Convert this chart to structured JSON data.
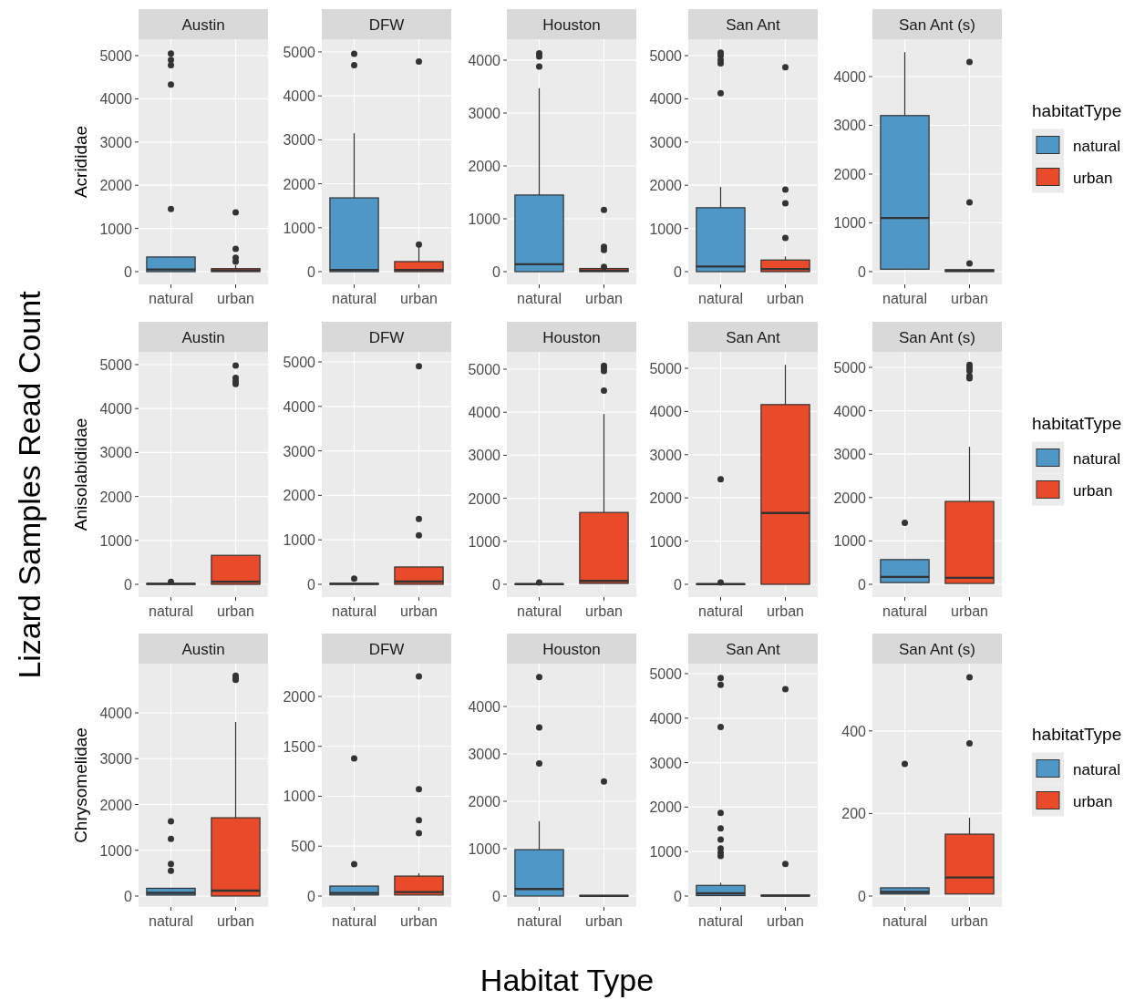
{
  "chart_data": [
    {
      "type": "box",
      "title": "Austin",
      "ylabel": "Acrididae",
      "categories": [
        "natural",
        "urban"
      ],
      "colors": [
        "#4f97c6",
        "#e84a2a"
      ],
      "ylim": [
        -295,
        5380
      ],
      "yticks": [
        0,
        1000,
        2000,
        3000,
        4000,
        5000
      ],
      "grid": true,
      "boxes": [
        {
          "q1": 0,
          "median": 50,
          "q3": 340,
          "high": 340,
          "outliers": [
            5050,
            4900,
            4780,
            4330,
            1450
          ]
        },
        {
          "q1": 0,
          "median": 30,
          "q3": 70,
          "high": 150,
          "outliers": [
            1370,
            530,
            320,
            230
          ]
        }
      ]
    },
    {
      "type": "box",
      "title": "DFW",
      "categories": [
        "natural",
        "urban"
      ],
      "colors": [
        "#4f97c6",
        "#e84a2a"
      ],
      "ylim": [
        -290,
        5290
      ],
      "yticks": [
        0,
        1000,
        2000,
        3000,
        4000,
        5000
      ],
      "grid": true,
      "boxes": [
        {
          "q1": 0,
          "median": 40,
          "q3": 1680,
          "high": 3150,
          "outliers": [
            4960,
            4700
          ]
        },
        {
          "q1": 0,
          "median": 40,
          "q3": 230,
          "high": 570,
          "outliers": [
            620,
            4780
          ]
        }
      ]
    },
    {
      "type": "box",
      "title": "Houston",
      "categories": [
        "natural",
        "urban"
      ],
      "colors": [
        "#4f97c6",
        "#e84a2a"
      ],
      "ylim": [
        -241,
        4397
      ],
      "yticks": [
        0,
        1000,
        2000,
        3000,
        4000
      ],
      "grid": true,
      "boxes": [
        {
          "q1": 0,
          "median": 140,
          "q3": 1450,
          "high": 3470,
          "outliers": [
            4130,
            4070,
            3880
          ]
        },
        {
          "q1": 0,
          "median": 20,
          "q3": 60,
          "high": 60,
          "outliers": [
            1170,
            470,
            410,
            90
          ]
        }
      ]
    },
    {
      "type": "box",
      "title": "San Ant",
      "categories": [
        "natural",
        "urban"
      ],
      "colors": [
        "#4f97c6",
        "#e84a2a"
      ],
      "ylim": [
        -295,
        5380
      ],
      "yticks": [
        0,
        1000,
        2000,
        3000,
        4000,
        5000
      ],
      "grid": true,
      "boxes": [
        {
          "q1": 0,
          "median": 120,
          "q3": 1480,
          "high": 1960,
          "outliers": [
            5070,
            5000,
            4900,
            4820,
            4130
          ]
        },
        {
          "q1": 0,
          "median": 60,
          "q3": 270,
          "high": 350,
          "outliers": [
            4730,
            1900,
            1580,
            780
          ]
        }
      ]
    },
    {
      "type": "box",
      "title": "San Ant (s)",
      "categories": [
        "natural",
        "urban"
      ],
      "ylim": [
        -262,
        4766
      ],
      "yticks": [
        0,
        1000,
        2000,
        3000,
        4000
      ],
      "grid": true,
      "legend": "right",
      "legend_title": "habitatType",
      "series": [
        {
          "name": "natural",
          "color": "#4f97c6",
          "boxes": [
            {
              "q1": 50,
              "median": 1100,
              "q3": 3200,
              "high": 4500
            },
            null
          ]
        },
        {
          "name": "urban",
          "color": "#e84a2a",
          "boxes": [
            null,
            {
              "q1": 0,
              "median": 20,
              "q3": 40,
              "high": 60,
              "outliers": [
                4300,
                1420,
                170
              ]
            }
          ]
        }
      ]
    },
    {
      "type": "box",
      "title": "Austin",
      "ylabel": "Anisolabididae",
      "categories": [
        "natural",
        "urban"
      ],
      "colors": [
        "#4f97c6",
        "#e84a2a"
      ],
      "ylim": [
        -290,
        5290
      ],
      "yticks": [
        0,
        1000,
        2000,
        3000,
        4000,
        5000
      ],
      "grid": true,
      "boxes": [
        {
          "q1": 0,
          "median": 10,
          "q3": 20,
          "high": 40,
          "outliers": [
            60
          ]
        },
        {
          "q1": 0,
          "median": 60,
          "q3": 660,
          "high": 660,
          "outliers": [
            4980,
            4700,
            4620,
            4560
          ]
        }
      ]
    },
    {
      "type": "box",
      "title": "DFW",
      "categories": [
        "natural",
        "urban"
      ],
      "colors": [
        "#4f97c6",
        "#e84a2a"
      ],
      "ylim": [
        -287,
        5225
      ],
      "yticks": [
        0,
        1000,
        2000,
        3000,
        4000,
        5000
      ],
      "grid": true,
      "boxes": [
        {
          "q1": 0,
          "median": 10,
          "q3": 20,
          "high": 30,
          "outliers": [
            130
          ]
        },
        {
          "q1": 0,
          "median": 60,
          "q3": 390,
          "high": 390,
          "outliers": [
            4900,
            1470,
            1100
          ]
        }
      ]
    },
    {
      "type": "box",
      "title": "Houston",
      "categories": [
        "natural",
        "urban"
      ],
      "colors": [
        "#4f97c6",
        "#e84a2a"
      ],
      "ylim": [
        -297,
        5403
      ],
      "yticks": [
        0,
        1000,
        2000,
        3000,
        4000,
        5000
      ],
      "grid": true,
      "boxes": [
        {
          "q1": 0,
          "median": 5,
          "q3": 10,
          "high": 20,
          "outliers": [
            40
          ]
        },
        {
          "q1": 20,
          "median": 80,
          "q3": 1670,
          "high": 3960,
          "outliers": [
            5080,
            5020,
            4960,
            4500
          ]
        }
      ]
    },
    {
      "type": "box",
      "title": "San Ant",
      "categories": [
        "natural",
        "urban"
      ],
      "colors": [
        "#4f97c6",
        "#e84a2a"
      ],
      "ylim": [
        -295,
        5380
      ],
      "yticks": [
        0,
        1000,
        2000,
        3000,
        4000,
        5000
      ],
      "grid": true,
      "boxes": [
        {
          "q1": 0,
          "median": 5,
          "q3": 10,
          "high": 20,
          "outliers": [
            40,
            2430
          ]
        },
        {
          "q1": 0,
          "median": 1650,
          "q3": 4160,
          "high": 5080
        }
      ]
    },
    {
      "type": "box",
      "title": "San Ant (s)",
      "categories": [
        "natural",
        "urban"
      ],
      "ylim": [
        -294,
        5357
      ],
      "yticks": [
        0,
        1000,
        2000,
        3000,
        4000,
        5000
      ],
      "grid": true,
      "legend": "right",
      "legend_title": "habitatType",
      "series": [
        {
          "name": "natural",
          "color": "#4f97c6",
          "boxes": [
            {
              "q1": 40,
              "median": 170,
              "q3": 570,
              "high": 570,
              "outliers": [
                1420
              ]
            },
            null
          ]
        },
        {
          "name": "urban",
          "color": "#e84a2a",
          "boxes": [
            null,
            {
              "q1": 20,
              "median": 150,
              "q3": 1910,
              "high": 3170,
              "outliers": [
                5060,
                4990,
                4920,
                4800,
                4750
              ]
            }
          ]
        }
      ]
    },
    {
      "type": "box",
      "title": "Austin",
      "ylabel": "Chrysomelidae",
      "categories": [
        "natural",
        "urban"
      ],
      "colors": [
        "#4f97c6",
        "#e84a2a"
      ],
      "ylim": [
        -239,
        5075
      ],
      "yticks": [
        0,
        1000,
        2000,
        3000,
        4000
      ],
      "grid": true,
      "boxes": [
        {
          "q1": 20,
          "median": 70,
          "q3": 170,
          "high": 170,
          "outliers": [
            1630,
            1250,
            700,
            550
          ]
        },
        {
          "q1": 0,
          "median": 120,
          "q3": 1710,
          "high": 3800,
          "outliers": [
            4810,
            4750,
            4720
          ]
        }
      ]
    },
    {
      "type": "box",
      "title": "DFW",
      "categories": [
        "natural",
        "urban"
      ],
      "colors": [
        "#4f97c6",
        "#e84a2a"
      ],
      "ylim": [
        -110,
        2329
      ],
      "yticks": [
        0,
        500,
        1000,
        1500,
        2000
      ],
      "grid": true,
      "boxes": [
        {
          "q1": 10,
          "median": 30,
          "q3": 100,
          "high": 100,
          "outliers": [
            1380,
            320
          ]
        },
        {
          "q1": 10,
          "median": 40,
          "q3": 200,
          "high": 230,
          "outliers": [
            2200,
            1070,
            760,
            630
          ]
        }
      ]
    },
    {
      "type": "box",
      "title": "Houston",
      "categories": [
        "natural",
        "urban"
      ],
      "colors": [
        "#4f97c6",
        "#e84a2a"
      ],
      "ylim": [
        -231,
        4904
      ],
      "yticks": [
        0,
        1000,
        2000,
        3000,
        4000
      ],
      "grid": true,
      "boxes": [
        {
          "q1": 0,
          "median": 150,
          "q3": 980,
          "high": 1580,
          "outliers": [
            4620,
            3560,
            2800
          ]
        },
        {
          "q1": 0,
          "median": 5,
          "q3": 10,
          "high": 20,
          "outliers": [
            2420
          ]
        }
      ]
    },
    {
      "type": "box",
      "title": "San Ant",
      "categories": [
        "natural",
        "urban"
      ],
      "colors": [
        "#4f97c6",
        "#e84a2a"
      ],
      "ylim": [
        -246,
        5225
      ],
      "yticks": [
        0,
        1000,
        2000,
        3000,
        4000,
        5000
      ],
      "grid": true,
      "boxes": [
        {
          "q1": 10,
          "median": 60,
          "q3": 240,
          "high": 300,
          "outliers": [
            4900,
            4750,
            3800,
            1870,
            1520,
            1270,
            1070,
            980,
            900
          ]
        },
        {
          "q1": 0,
          "median": 10,
          "q3": 20,
          "high": 30,
          "outliers": [
            4650,
            720
          ]
        }
      ]
    },
    {
      "type": "box",
      "title": "San Ant (s)",
      "categories": [
        "natural",
        "urban"
      ],
      "ylim": [
        -26.5,
        563
      ],
      "yticks": [
        0,
        200,
        400
      ],
      "grid": true,
      "legend": "right",
      "legend_title": "habitatType",
      "series": [
        {
          "name": "natural",
          "color": "#4f97c6",
          "boxes": [
            {
              "q1": 5,
              "median": 10,
              "q3": 20,
              "high": 20,
              "outliers": [
                320
              ]
            },
            null
          ]
        },
        {
          "name": "urban",
          "color": "#e84a2a",
          "boxes": [
            null,
            {
              "q1": 5,
              "median": 45,
              "q3": 150,
              "high": 190,
              "outliers": [
                530,
                370
              ]
            }
          ]
        }
      ]
    },
    {
      "type": "other",
      "xlabel": "Habitat Type",
      "ylabel": "Lizard Samples Read Count"
    }
  ]
}
